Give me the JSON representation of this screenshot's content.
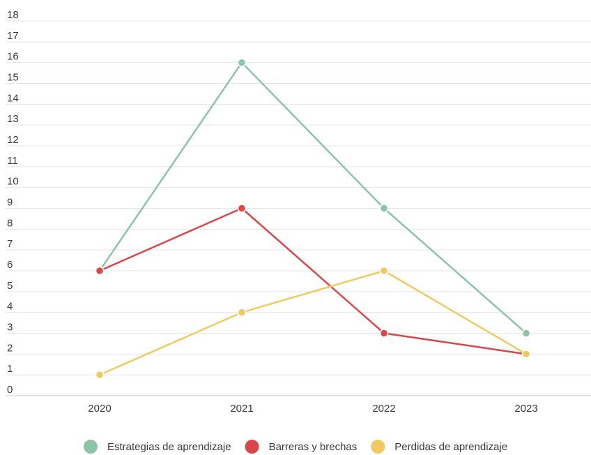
{
  "chart_data": {
    "type": "line",
    "categories": [
      "2020",
      "2021",
      "2022",
      "2023"
    ],
    "ylim": [
      0,
      18
    ],
    "yticks": [
      0,
      1,
      2,
      3,
      4,
      5,
      6,
      7,
      8,
      9,
      10,
      11,
      12,
      13,
      14,
      15,
      16,
      17,
      18
    ],
    "grid": true,
    "legend_position": "bottom",
    "series": [
      {
        "name": "Estrategias de aprendizaje",
        "color": "#8cc4a8",
        "values": [
          6,
          16,
          9,
          3
        ]
      },
      {
        "name": "Barreras y brechas",
        "color": "#d9474b",
        "values": [
          6,
          9,
          3,
          2
        ]
      },
      {
        "name": "Perdidas de aprendizaje",
        "color": "#eecb62",
        "values": [
          1,
          4,
          6,
          2
        ]
      }
    ]
  }
}
